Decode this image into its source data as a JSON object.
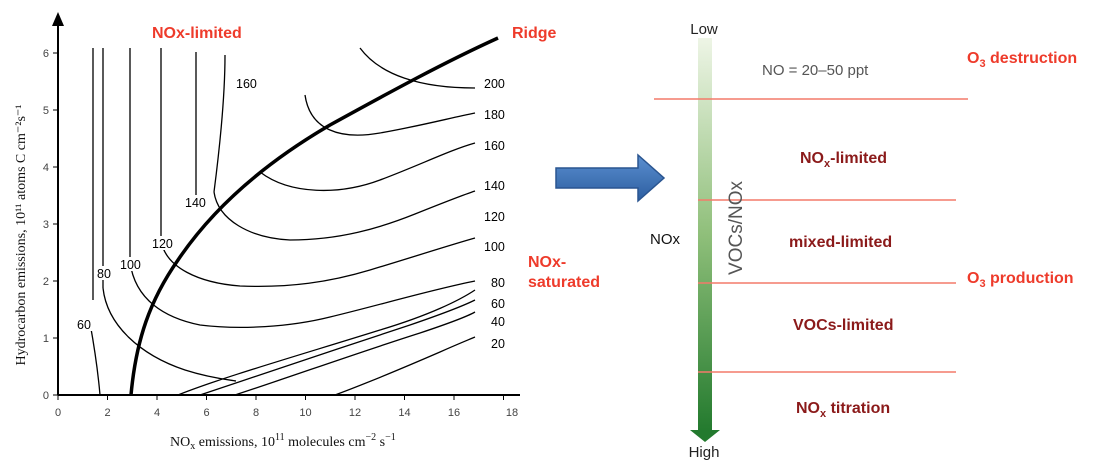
{
  "left_plot": {
    "annotations": {
      "nox_limited": "NOx-limited",
      "ridge": "Ridge",
      "nox_saturated_line1": "NOx-",
      "nox_saturated_line2": "saturated"
    },
    "xaxis": {
      "label_main": "NO",
      "label_sub": "x",
      "label_rest": " emissions, 10",
      "label_sup": "11",
      "label_tail": " molecules cm",
      "label_sup2": "−2",
      "label_tail2": " s",
      "label_sup3": "−1",
      "ticks": [
        "0",
        "2",
        "4",
        "6",
        "8",
        "10",
        "12",
        "14",
        "16",
        "18"
      ]
    },
    "yaxis": {
      "label": "Hydrocarbon emissions, 10¹¹ atoms C cm⁻²s⁻¹",
      "ticks": [
        "0",
        "1",
        "2",
        "3",
        "4",
        "5",
        "6"
      ]
    },
    "contour_labels": {
      "c60": "60",
      "c80": "80",
      "c100": "100",
      "c120": "120",
      "c140": "140",
      "c160": "160",
      "r200": "200",
      "r180": "180",
      "r160": "160",
      "r140": "140",
      "r120": "120",
      "r100": "100",
      "r80": "80",
      "r60": "60",
      "r40": "40",
      "r20": "20"
    }
  },
  "right_diagram": {
    "low": "Low",
    "high": "High",
    "nox_axis": "NOx",
    "ratio_label": "VOCs/NOx",
    "no_range": "NO = 20–50 ppt",
    "regimes": {
      "nox_limited_main": "NO",
      "nox_limited_sub": "x",
      "nox_limited_rest": "-limited",
      "mixed_limited": "mixed-limited",
      "vocs_limited": "VOCs-limited",
      "titration_main": "NO",
      "titration_sub": "x",
      "titration_rest": " titration"
    },
    "side_labels": {
      "destruction_main": "O",
      "destruction_sub": "3",
      "destruction_rest": " destruction",
      "production_main": "O",
      "production_sub": "3",
      "production_rest": " production"
    }
  },
  "colors": {
    "red_text": "#ee3b2b",
    "dark_red_text": "#8b1a1a",
    "arrow_blue": "#3a73b8",
    "arrow_green": "#2e7d32",
    "divider_red": "#f47a6a"
  }
}
